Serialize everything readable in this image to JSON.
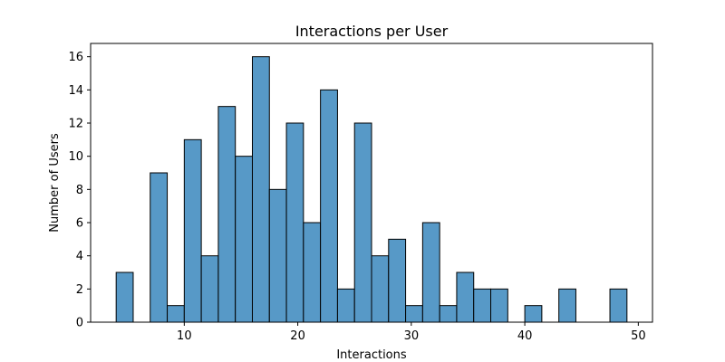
{
  "chart_data": {
    "type": "bar",
    "subtype": "histogram",
    "title": "Interactions per User",
    "xlabel": "Interactions",
    "ylabel": "Number of Users",
    "xlim": [
      1.75,
      51.25
    ],
    "ylim": [
      0,
      16.8
    ],
    "xticks": [
      10,
      20,
      30,
      40,
      50
    ],
    "yticks": [
      0,
      2,
      4,
      6,
      8,
      10,
      12,
      14,
      16
    ],
    "bin_start": 4,
    "bin_width": 1.5,
    "counts": [
      3,
      0,
      9,
      1,
      11,
      4,
      13,
      10,
      16,
      8,
      12,
      6,
      14,
      2,
      12,
      4,
      5,
      1,
      6,
      1,
      3,
      2,
      2,
      0,
      1,
      0,
      2,
      0,
      0,
      2
    ],
    "grid": false,
    "legend": "none",
    "bar_color": "#5799c7",
    "edge_color": "#000000"
  }
}
